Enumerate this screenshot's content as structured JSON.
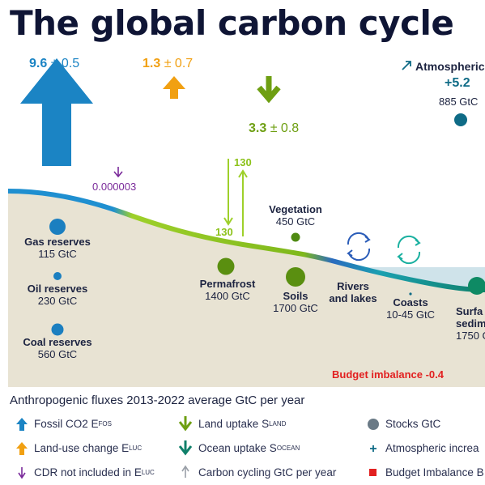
{
  "title": "The global carbon cycle",
  "fluxes": {
    "fossil": {
      "value": "9.6",
      "pm": "± 0.5",
      "color": "#1b84c4"
    },
    "landuse": {
      "value": "1.3",
      "pm": "± 0.7",
      "color": "#f1a012"
    },
    "landuptake": {
      "value": "3.3",
      "pm": "± 0.8",
      "color": "#6e9f12"
    },
    "cdr": {
      "value": "0.000003",
      "color": "#7a2a9a"
    },
    "cycling_down": "130",
    "cycling_up": "130"
  },
  "atmospheric": {
    "label": "Atmospheric",
    "value": "+5.2",
    "stock": "885 GtC",
    "color": "#0f6b86"
  },
  "stocks": {
    "gas": {
      "name": "Gas reserves",
      "value": "115 GtC"
    },
    "oil": {
      "name": "Oil reserves",
      "value": "230 GtC"
    },
    "coal": {
      "name": "Coal reserves",
      "value": "560 GtC"
    },
    "vegetation": {
      "name": "Vegetation",
      "value": "450 GtC"
    },
    "permafrost": {
      "name": "Permafrost",
      "value": "1400 GtC"
    },
    "soils": {
      "name": "Soils",
      "value": "1700 GtC"
    },
    "rivers": {
      "name1": "Rivers",
      "name2": "and lakes"
    },
    "coasts": {
      "name": "Coasts",
      "value": "10-45 GtC"
    },
    "surface": {
      "name1": "Surfa",
      "name2": "sedime",
      "value": "1750 G"
    }
  },
  "budget_imbalance": "Budget imbalance -0.4",
  "legend": {
    "title": "Anthropogenic fluxes 2013-2022 average GtC per year",
    "fossil": {
      "text": "Fossil CO2 E",
      "sub": "FOS"
    },
    "landuse": {
      "text": "Land-use change E",
      "sub": "LUC"
    },
    "cdr": {
      "text": "CDR not included in E",
      "sub": "LUC"
    },
    "landuptake": {
      "text": "Land uptake S",
      "sub": "LAND"
    },
    "oceanuptake": {
      "text": "Ocean uptake S",
      "sub": "OCEAN"
    },
    "cycling": {
      "text": "Carbon cycling GtC per year"
    },
    "stocks": {
      "text": "Stocks GtC"
    },
    "atm_increase": {
      "text": "Atmospheric increa"
    },
    "imbalance": {
      "text": "Budget Imbalance B"
    }
  }
}
